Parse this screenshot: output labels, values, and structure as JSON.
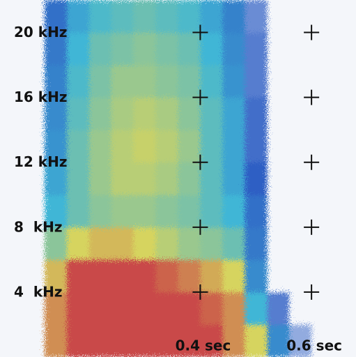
{
  "chart_data": {
    "type": "heatmap",
    "xlim": [
      0.04,
      0.68
    ],
    "ylim": [
      0,
      22
    ],
    "x_bins": [
      0.04,
      0.08,
      0.12,
      0.16,
      0.2,
      0.24,
      0.28,
      0.32,
      0.36,
      0.4,
      0.44,
      0.48,
      0.52,
      0.56,
      0.6,
      0.64,
      0.68
    ],
    "y_bins": [
      0,
      2,
      4,
      6,
      8,
      10,
      12,
      14,
      16,
      18,
      20,
      22
    ],
    "z": [
      [
        0,
        0,
        3.5,
        4,
        4,
        4,
        4,
        4,
        4,
        4,
        3.5,
        3,
        1.5,
        0.5,
        0,
        0
      ],
      [
        0,
        0,
        3.5,
        4,
        4,
        4,
        4,
        4,
        4,
        3.8,
        3.5,
        2,
        0.8,
        0,
        0,
        0
      ],
      [
        0,
        0,
        3.2,
        4,
        4,
        4,
        4,
        3.8,
        3.6,
        3.3,
        3,
        1.5,
        0,
        0,
        0,
        0
      ],
      [
        0,
        0,
        2.5,
        3,
        3.2,
        3.2,
        3,
        2.8,
        2.6,
        2.5,
        2.3,
        1.3,
        0,
        0,
        0,
        0
      ],
      [
        0,
        0,
        2,
        2.3,
        2.5,
        2.6,
        2.6,
        2.5,
        2.4,
        2.2,
        2,
        1.2,
        0,
        0,
        0,
        0
      ],
      [
        0,
        0,
        1.8,
        2.3,
        2.6,
        2.8,
        2.8,
        2.7,
        2.5,
        2.2,
        1.8,
        1,
        0,
        0,
        0,
        0
      ],
      [
        0,
        0,
        1.6,
        2.3,
        2.6,
        2.8,
        2.9,
        2.8,
        2.6,
        2.2,
        1.8,
        0.9,
        0,
        0,
        0,
        0
      ],
      [
        0,
        0,
        1.5,
        2.2,
        2.5,
        2.7,
        2.8,
        2.7,
        2.5,
        2.2,
        1.8,
        0.9,
        0,
        0,
        0,
        0
      ],
      [
        0,
        0,
        1.4,
        2.1,
        2.4,
        2.6,
        2.6,
        2.5,
        2.4,
        2.1,
        1.6,
        0.8,
        0,
        0,
        0,
        0
      ],
      [
        0,
        0,
        1.3,
        2,
        2.3,
        2.4,
        2.5,
        2.4,
        2.3,
        2,
        1.5,
        0.8,
        0,
        0,
        0,
        0
      ],
      [
        0,
        0,
        1.2,
        1.8,
        2.1,
        2.2,
        2.3,
        2.2,
        2.1,
        1.8,
        1.4,
        0.7,
        0,
        0,
        0,
        0
      ]
    ],
    "colorscale": [
      "#f4f6fa",
      "#2f5fc4",
      "#3fb6d6",
      "#d6d45e",
      "#c94848"
    ],
    "xticks": [
      {
        "value": 0.4,
        "label": "0.4 sec"
      },
      {
        "value": 0.6,
        "label": "0.6 sec"
      }
    ],
    "yticks": [
      {
        "value": 4,
        "label": "4  kHz"
      },
      {
        "value": 8,
        "label": "8  kHz"
      },
      {
        "value": 12,
        "label": "12 kHz"
      },
      {
        "value": 16,
        "label": "16 kHz"
      },
      {
        "value": 20,
        "label": "20 kHz"
      }
    ]
  }
}
